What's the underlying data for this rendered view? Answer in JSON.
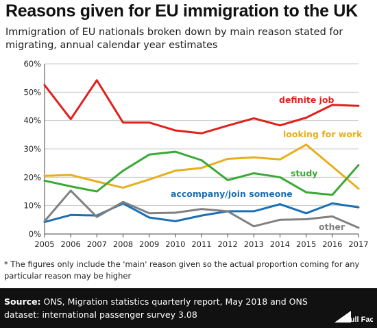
{
  "header": {
    "title": "Reasons given for EU immigration to the UK",
    "subtitle": "Immigration of EU nationals broken down by main reason stated for migrating, annual calendar year estimates"
  },
  "footnote": "* The figures only include the 'main' reason given so the actual proportion coming for any particular reason may be higher",
  "source": {
    "label": "Source:",
    "text": " ONS, Migration statistics quarterly report, May 2018 and ONS dataset: international passenger survey 3.08"
  },
  "logo": {
    "icon": "full-fact-logo-icon",
    "text": "Full Fact"
  },
  "chart_data": {
    "type": "line",
    "x": [
      2005,
      2006,
      2007,
      2008,
      2009,
      2010,
      2011,
      2012,
      2013,
      2014,
      2015,
      2016,
      2017
    ],
    "ylim": [
      0,
      60
    ],
    "yticks": [
      "0%",
      "10%",
      "20%",
      "30%",
      "40%",
      "50%",
      "60%"
    ],
    "grid": true,
    "series": [
      {
        "name": "definite job",
        "color": "#e0211b",
        "values": [
          52.5,
          40.5,
          54.2,
          39.3,
          39.3,
          36.5,
          35.5,
          38.2,
          40.8,
          38.3,
          41.0,
          45.5,
          45.2
        ]
      },
      {
        "name": "looking for work",
        "color": "#e8ae1c",
        "values": [
          20.5,
          20.8,
          18.5,
          16.3,
          19.2,
          22.3,
          23.3,
          26.5,
          27.0,
          26.3,
          31.5,
          23.8,
          16.0
        ]
      },
      {
        "name": "study",
        "color": "#3aa935",
        "values": [
          18.8,
          16.8,
          15.0,
          22.3,
          28.0,
          29.0,
          26.0,
          19.0,
          21.4,
          20.0,
          14.7,
          13.8,
          24.3
        ]
      },
      {
        "name": "accompany/join someone",
        "color": "#1a6fb5",
        "values": [
          4.2,
          6.7,
          6.5,
          10.8,
          5.8,
          4.5,
          6.5,
          8.0,
          8.0,
          10.5,
          7.3,
          10.8,
          9.4
        ]
      },
      {
        "name": "other",
        "color": "#808080",
        "values": [
          4.5,
          15.3,
          6.0,
          11.3,
          7.3,
          7.5,
          8.8,
          8.0,
          2.7,
          5.0,
          5.2,
          6.2,
          2.2
        ]
      }
    ]
  }
}
